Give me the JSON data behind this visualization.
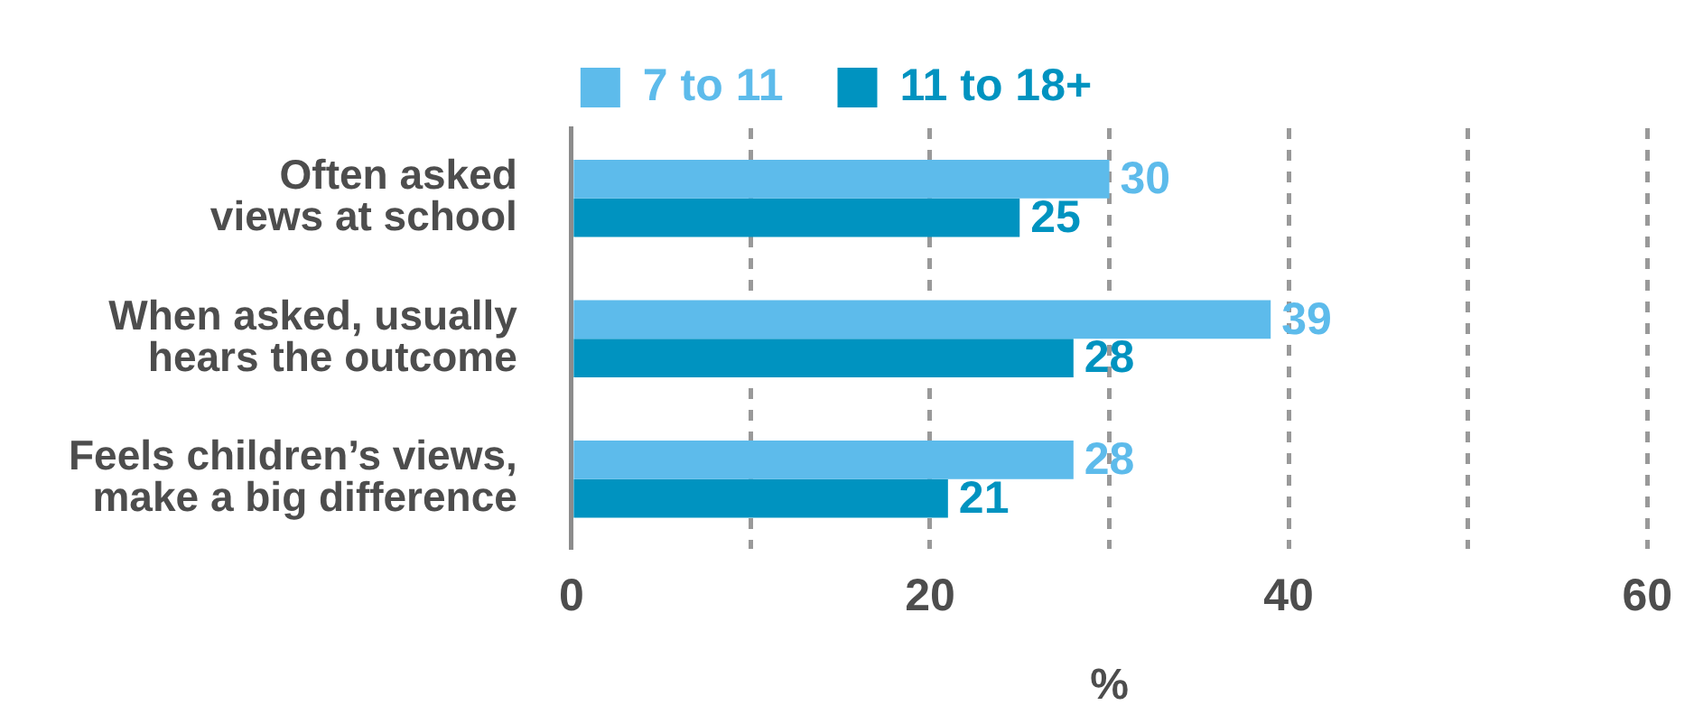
{
  "chart_data": {
    "type": "bar",
    "orientation": "horizontal",
    "categories": [
      "Often asked views at school",
      "When asked, usually hears the outcome",
      "Feels children’s views, make a big difference"
    ],
    "series": [
      {
        "name": "7 to 11",
        "color": "#5dbbeb",
        "values": [
          30,
          39,
          28
        ]
      },
      {
        "name": "11 to 18+",
        "color": "#0093c0",
        "values": [
          25,
          28,
          21
        ]
      }
    ],
    "xlabel": "%",
    "xlim": [
      0,
      60
    ],
    "xticks": [
      0,
      {
        "value": 10,
        "label": null
      },
      20,
      {
        "value": 30,
        "label": null
      },
      40,
      {
        "value": 50,
        "label": null
      },
      60
    ],
    "grid": "x",
    "legend": "top",
    "data_labels": true
  }
}
